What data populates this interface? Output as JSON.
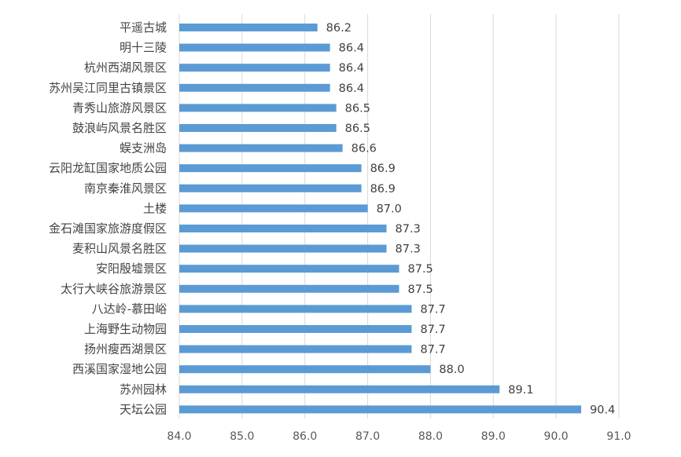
{
  "chart_data": {
    "type": "bar",
    "orientation": "horizontal",
    "categories": [
      "平遥古城",
      "明十三陵",
      "杭州西湖风景区",
      "苏州吴江同里古镇景区",
      "青秀山旅游风景区",
      "鼓浪屿风景名胜区",
      "蜈支洲岛",
      "云阳龙缸国家地质公园",
      "南京秦淮风景区",
      "土楼",
      "金石滩国家旅游度假区",
      "麦积山风景名胜区",
      "安阳殷墟景区",
      "太行大峡谷旅游景区",
      "八达岭-慕田峪",
      "上海野生动物园",
      "扬州瘦西湖景区",
      "西溪国家湿地公园",
      "苏州园林",
      "天坛公园"
    ],
    "values": [
      86.2,
      86.4,
      86.4,
      86.4,
      86.5,
      86.5,
      86.6,
      86.9,
      86.9,
      87.0,
      87.3,
      87.3,
      87.5,
      87.5,
      87.7,
      87.7,
      87.7,
      88.0,
      89.1,
      90.4
    ],
    "value_labels": [
      "86.2",
      "86.4",
      "86.4",
      "86.4",
      "86.5",
      "86.5",
      "86.6",
      "86.9",
      "86.9",
      "87.0",
      "87.3",
      "87.3",
      "87.5",
      "87.5",
      "87.7",
      "87.7",
      "87.7",
      "88.0",
      "89.1",
      "90.4"
    ],
    "x_ticks": [
      "84.0",
      "85.0",
      "86.0",
      "87.0",
      "88.0",
      "89.0",
      "90.0",
      "91.0"
    ],
    "xlim": [
      84.0,
      91.0
    ],
    "grid": "vertical",
    "legend": "none",
    "title": "",
    "xlabel": "",
    "ylabel": "",
    "bar_color": "#5B9BD5",
    "grid_color": "#D9D9D9"
  }
}
